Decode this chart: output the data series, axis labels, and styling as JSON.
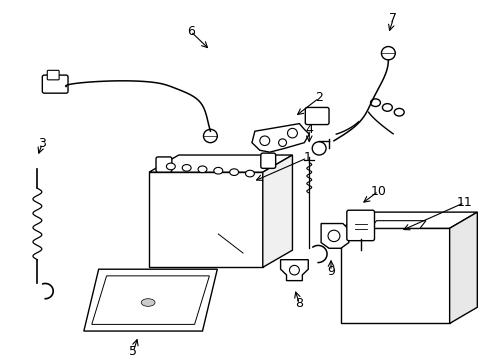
{
  "bg_color": "#ffffff",
  "line_color": "#000000",
  "line_width": 1.0,
  "fig_width": 4.89,
  "fig_height": 3.6,
  "dpi": 100
}
